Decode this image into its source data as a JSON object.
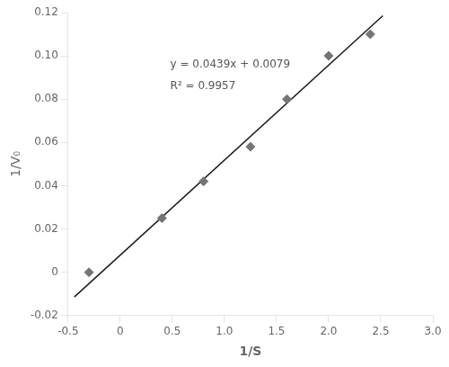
{
  "chart_data": {
    "type": "scatter",
    "xlabel": "1/S",
    "ylabel": "1/V₀",
    "annotations": [
      "y = 0.0439x + 0.0079",
      "R² = 0.9957"
    ],
    "series": [
      {
        "type": "line",
        "x": [
          -0.44,
          2.52
        ],
        "values": [
          -0.011416,
          0.118528
        ],
        "color": "#1a1a1a",
        "line_style": "solid"
      },
      {
        "type": "scatter",
        "x": [
          -0.3,
          0.4,
          0.8,
          1.25,
          1.6,
          2.0,
          2.4
        ],
        "values": [
          0.0,
          0.025,
          0.042,
          0.058,
          0.08,
          0.1,
          0.11
        ],
        "color": "#757575",
        "marker": "diamond"
      }
    ],
    "xlim": [
      -0.5,
      3.0
    ],
    "ylim": [
      -0.02,
      0.12
    ],
    "xticks": [
      -0.5,
      0,
      0.5,
      {
        "value": 1.0,
        "label": "1.0"
      },
      1.5,
      {
        "value": 2.0,
        "label": "2.0"
      },
      2.5,
      {
        "value": 3.0,
        "label": "3.0"
      }
    ],
    "yticks": [
      -0.02,
      0,
      0.02,
      0.04,
      0.06,
      0.08,
      {
        "value": 0.1,
        "label": "0.10"
      },
      0.12
    ],
    "grid": false
  }
}
